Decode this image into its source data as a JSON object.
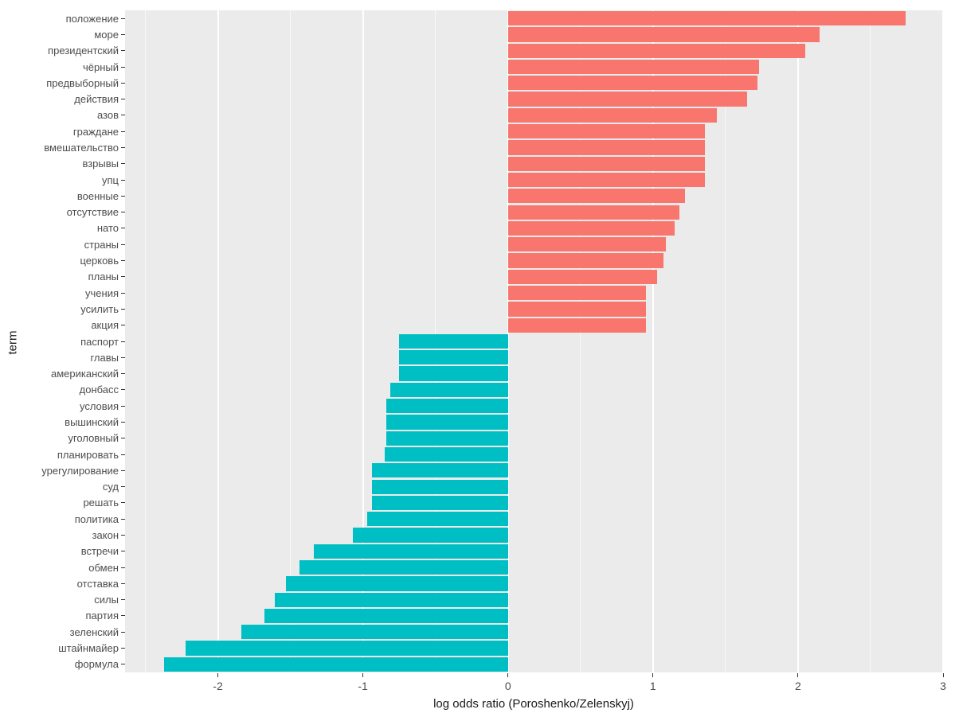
{
  "chart_data": {
    "type": "bar",
    "orientation": "horizontal",
    "title": "",
    "xlabel": "log odds ratio (Poroshenko/Zelenskyj)",
    "ylabel": "term",
    "legend": "none",
    "grid": true,
    "panel_background": "#EBEBEB",
    "grid_color": "#FFFFFF",
    "positive_color": "#F8766D",
    "negative_color": "#00BFC4",
    "xlim": [
      -2.64,
      3.0
    ],
    "x_ticks": [
      -2,
      -1,
      0,
      1,
      2,
      3
    ],
    "x_tick_labels": [
      "-2",
      "-1",
      "0",
      "1",
      "2",
      "3"
    ],
    "x_minor_ticks": [
      -2.5,
      -1.5,
      -0.5,
      0.5,
      1.5,
      2.5
    ],
    "categories": [
      "положение",
      "море",
      "президентский",
      "чёрный",
      "предвыборный",
      "действия",
      "азов",
      "граждане",
      "вмешательство",
      "взрывы",
      "упц",
      "военные",
      "отсутствие",
      "нато",
      "страны",
      "церковь",
      "планы",
      "учения",
      "усилить",
      "акция",
      "паспорт",
      "главы",
      "американский",
      "донбасс",
      "условия",
      "вышинский",
      "уголовный",
      "планировать",
      "урегулирование",
      "суд",
      "решать",
      "политика",
      "закон",
      "встречи",
      "обмен",
      "отставка",
      "силы",
      "партия",
      "зеленский",
      "штайнмайер",
      "формула"
    ],
    "values": [
      2.74,
      2.15,
      2.05,
      1.73,
      1.72,
      1.65,
      1.44,
      1.36,
      1.36,
      1.36,
      1.36,
      1.22,
      1.18,
      1.15,
      1.09,
      1.07,
      1.03,
      0.95,
      0.95,
      0.95,
      -0.75,
      -0.75,
      -0.75,
      -0.81,
      -0.84,
      -0.84,
      -0.84,
      -0.85,
      -0.94,
      -0.94,
      -0.94,
      -0.97,
      -1.07,
      -1.34,
      -1.44,
      -1.53,
      -1.61,
      -1.68,
      -1.84,
      -2.22,
      -2.37
    ]
  }
}
